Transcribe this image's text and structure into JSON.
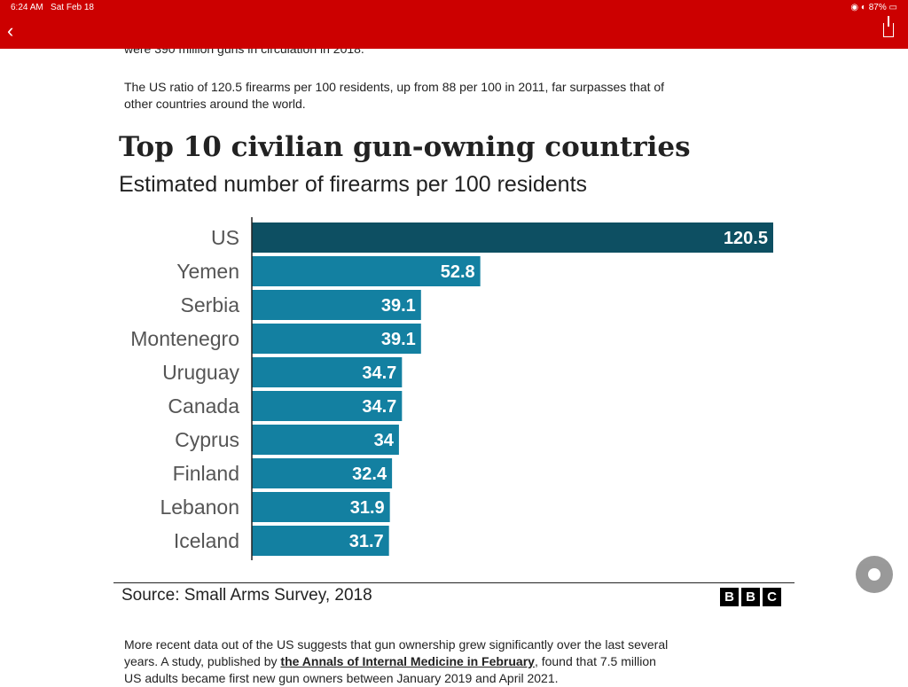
{
  "status_bar": {
    "time": "6:24 AM",
    "date": "Sat Feb 18",
    "battery": "87%"
  },
  "nav": {
    "back_icon": "chevron-left-icon",
    "share_icon": "share-icon"
  },
  "article": {
    "clipped_text": "were 390 million guns in circulation in 2018.",
    "para1": "The US ratio of 120.5 firearms per 100 residents, up from 88 per 100 in 2011, far surpasses that of other countries around the world.",
    "para3_before": "More recent data out of the US suggests that gun ownership grew significantly over the last several years. A study, published by ",
    "para3_link": "the Annals of Internal Medicine in February",
    "para3_after": ", found that 7.5 million US adults became first new gun owners between January 2019 and April 2021."
  },
  "chart_data": {
    "type": "bar",
    "orientation": "horizontal",
    "title": "Top 10 civilian gun-owning countries",
    "subtitle": "Estimated number of firearms per 100 residents",
    "categories": [
      "US",
      "Yemen",
      "Serbia",
      "Montenegro",
      "Uruguay",
      "Canada",
      "Cyprus",
      "Finland",
      "Lebanon",
      "Iceland"
    ],
    "values": [
      120.5,
      52.8,
      39.1,
      39.1,
      34.7,
      34.7,
      34,
      32.4,
      31.9,
      31.7
    ],
    "data_labels": [
      "120.5",
      "52.8",
      "39.1",
      "39.1",
      "34.7",
      "34.7",
      "34",
      "32.4",
      "31.9",
      "31.7"
    ],
    "highlight_color": "#0d4f62",
    "bar_color": "#1380a1",
    "source": "Source: Small Arms Survey, 2018",
    "logo": "BBC"
  }
}
